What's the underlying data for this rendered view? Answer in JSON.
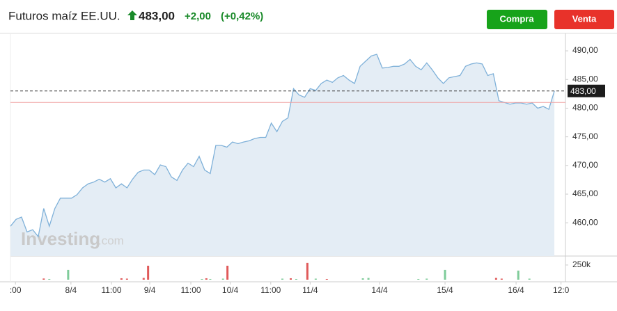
{
  "chart_data": {
    "type": "area",
    "title": "Futuros maíz EE.UU.",
    "last": {
      "value": 483,
      "label": "483,00"
    },
    "change": "+2,00",
    "change_pct": "(+0,42%)",
    "prev_close": 481,
    "color": "#7fb1d9",
    "fill": "#e4edf5",
    "values": [
      459.4,
      460.6,
      461,
      458.4,
      458.8,
      457.6,
      462.5,
      459.4,
      462.5,
      464.3,
      464.3,
      464.3,
      464.9,
      466.1,
      466.8,
      467.1,
      467.6,
      467.1,
      467.7,
      466.1,
      466.8,
      466.1,
      467.6,
      468.8,
      469.2,
      469.2,
      468.4,
      470.1,
      469.8,
      468,
      467.4,
      469.2,
      470.4,
      469.8,
      471.6,
      469.2,
      468.6,
      473.5,
      473.5,
      473.2,
      474.1,
      473.8,
      474.1,
      474.3,
      474.7,
      474.9,
      474.9,
      477.4,
      475.9,
      477.7,
      478.3,
      483.4,
      482.3,
      481.9,
      483.4,
      483.1,
      484.3,
      484.9,
      484.5,
      485.3,
      485.7,
      484.9,
      484.3,
      487.3,
      488.2,
      489.1,
      489.4,
      487,
      487.1,
      487.3,
      487.3,
      487.7,
      488.5,
      487.3,
      486.7,
      487.9,
      486.7,
      485.3,
      484.3,
      485.3,
      485.5,
      485.7,
      487.3,
      487.7,
      487.9,
      487.7,
      485.7,
      486,
      481.3,
      481,
      480.7,
      480.9,
      480.9,
      480.7,
      480.9,
      480,
      480.3,
      479.8,
      483
    ],
    "xlim": [
      0,
      100
    ],
    "xticks": [
      {
        "value": 0.9,
        "label": ":00"
      },
      {
        "value": 10.9,
        "label": "8/4"
      },
      {
        "value": 18.2,
        "label": "11:00"
      },
      {
        "value": 25.1,
        "label": "9/4"
      },
      {
        "value": 32.5,
        "label": "11:00"
      },
      {
        "value": 39.6,
        "label": "10/4"
      },
      {
        "value": 46.9,
        "label": "11:00"
      },
      {
        "value": 54,
        "label": "11/4"
      },
      {
        "value": 66.5,
        "label": "14/4"
      },
      {
        "value": 78.3,
        "label": "15/4"
      },
      {
        "value": 91.1,
        "label": "16/4"
      },
      {
        "value": 99.2,
        "label": "12:0"
      }
    ],
    "ylim": [
      454.2,
      492.8
    ],
    "yticks": [
      {
        "value": 460,
        "label": "460,00"
      },
      {
        "value": 465,
        "label": "465,00"
      },
      {
        "value": 470,
        "label": "470,00"
      },
      {
        "value": 475,
        "label": "475,00"
      },
      {
        "value": 480,
        "label": "480,00"
      },
      {
        "value": 485,
        "label": "485,00"
      },
      {
        "value": 490,
        "label": "490,00"
      }
    ],
    "grid": false,
    "volume": {
      "x": [
        6,
        7,
        10.4,
        20,
        21,
        24,
        24.8,
        34.5,
        35.3,
        36,
        38.3,
        39.1,
        49,
        50.5,
        51.5,
        53.5,
        55,
        57,
        63.5,
        64.5,
        73.5,
        75,
        78.3,
        87.5,
        88.5,
        91.5,
        93.5
      ],
      "values": [
        20000,
        12000,
        167000,
        24000,
        18000,
        30000,
        238000,
        12000,
        24000,
        12000,
        18000,
        238000,
        18000,
        24000,
        12000,
        286000,
        18000,
        12000,
        24000,
        30000,
        12000,
        18000,
        167000,
        30000,
        18000,
        155000,
        18000
      ],
      "colors": [
        "#e05a5a",
        "#7fcc9a",
        "#7fcc9a",
        "#e05a5a",
        "#e05a5a",
        "#e05a5a",
        "#e05a5a",
        "#7fcc9a",
        "#e05a5a",
        "#7fcc9a",
        "#7fcc9a",
        "#e05a5a",
        "#7fcc9a",
        "#e05a5a",
        "#7fcc9a",
        "#e05a5a",
        "#7fcc9a",
        "#e05a5a",
        "#7fcc9a",
        "#7fcc9a",
        "#7fcc9a",
        "#7fcc9a",
        "#7fcc9a",
        "#e05a5a",
        "#e05a5a",
        "#7fcc9a",
        "#7fcc9a"
      ],
      "ylim": [
        0,
        320000
      ],
      "yticks": [
        {
          "value": 250000,
          "label": "250k"
        }
      ]
    }
  },
  "buttons": [
    "Compra",
    "Venta"
  ],
  "watermark": [
    "Investing",
    ".com"
  ]
}
